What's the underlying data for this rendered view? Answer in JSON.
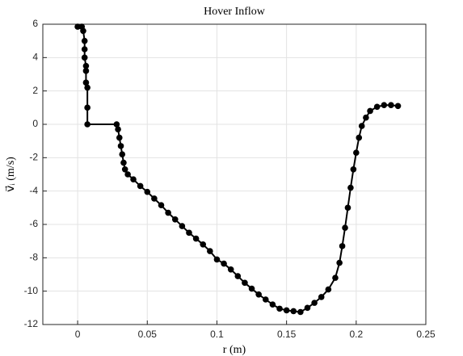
{
  "chart_data": {
    "type": "line",
    "title": "Hover Inflow",
    "xlabel": "r (m)",
    "ylabel": "v⃗ᵢ (m/s)",
    "x": [
      0,
      0.003,
      0.004,
      0.005,
      0.005,
      0.005,
      0.006,
      0.006,
      0.006,
      0.007,
      0.007,
      0.007,
      0.028,
      0.029,
      0.03,
      0.031,
      0.032,
      0.033,
      0.034,
      0.036,
      0.04,
      0.045,
      0.05,
      0.055,
      0.06,
      0.065,
      0.07,
      0.075,
      0.08,
      0.085,
      0.09,
      0.095,
      0.1,
      0.105,
      0.11,
      0.115,
      0.12,
      0.125,
      0.13,
      0.135,
      0.14,
      0.145,
      0.15,
      0.155,
      0.16,
      0.165,
      0.17,
      0.175,
      0.18,
      0.185,
      0.188,
      0.19,
      0.192,
      0.194,
      0.196,
      0.198,
      0.2,
      0.202,
      0.204,
      0.207,
      0.21,
      0.215,
      0.22,
      0.225,
      0.23
    ],
    "series": [
      {
        "color": "#000000",
        "values": [
          5.85,
          5.85,
          5.6,
          5.0,
          4.5,
          4.0,
          3.5,
          3.2,
          2.5,
          2.2,
          1.0,
          0,
          0,
          -0.3,
          -0.8,
          -1.3,
          -1.8,
          -2.3,
          -2.7,
          -3.0,
          -3.3,
          -3.7,
          -4.05,
          -4.45,
          -4.85,
          -5.3,
          -5.7,
          -6.1,
          -6.5,
          -6.85,
          -7.2,
          -7.6,
          -8.1,
          -8.35,
          -8.7,
          -9.1,
          -9.5,
          -9.85,
          -10.2,
          -10.5,
          -10.8,
          -11.05,
          -11.15,
          -11.2,
          -11.25,
          -11.0,
          -10.7,
          -10.35,
          -9.9,
          -9.2,
          -8.3,
          -7.3,
          -6.2,
          -5.0,
          -3.8,
          -2.7,
          -1.7,
          -0.8,
          -0.1,
          0.4,
          0.8,
          1.05,
          1.15,
          1.15,
          1.1
        ]
      }
    ],
    "xlim": [
      -0.025,
      0.25
    ],
    "xticks": [
      0,
      0.05,
      0.1,
      0.15,
      0.2,
      0.25
    ],
    "ylim": [
      -12,
      6
    ],
    "yticks": [
      -12,
      -10,
      -8,
      -6,
      -4,
      -2,
      0,
      2,
      4,
      6
    ],
    "grid": true
  }
}
